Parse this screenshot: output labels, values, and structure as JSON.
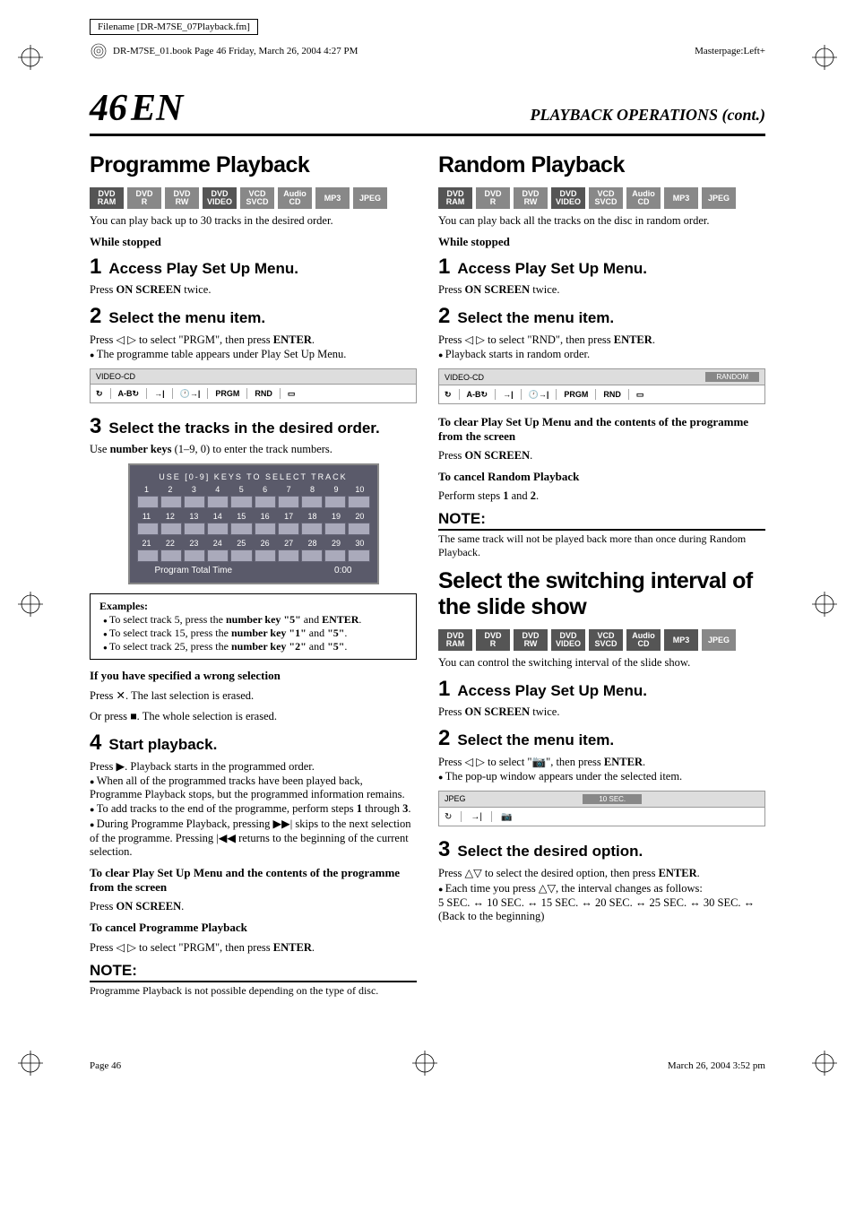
{
  "meta": {
    "filename": "Filename [DR-M7SE_07Playback.fm]",
    "book_info": "DR-M7SE_01.book  Page 46  Friday, March 26, 2004  4:27 PM",
    "masterpage": "Masterpage:Left+"
  },
  "header": {
    "page_number": "46",
    "lang": "EN",
    "cont_title": "PLAYBACK OPERATIONS (cont.)"
  },
  "formats": [
    "DVD RAM",
    "DVD R",
    "DVD RW",
    "DVD VIDEO",
    "VCD SVCD",
    "Audio CD",
    "MP3",
    "JPEG"
  ],
  "format_colors": {
    "badge_bg": "#888888",
    "badge_dark_bg": "#555555",
    "badge_text": "#ffffff"
  },
  "left": {
    "h1": "Programme Playback",
    "desc": "You can play back up to 30 tracks in the desired order.",
    "while_stopped": "While stopped",
    "step1": {
      "num": "1",
      "title": "Access Play Set Up Menu.",
      "body": "Press ON SCREEN twice."
    },
    "step2": {
      "num": "2",
      "title": "Select the menu item.",
      "body": "Press ◁ ▷ to select \"PRGM\", then press ENTER.",
      "bullet": "The programme table appears under Play Set Up Menu."
    },
    "osd_label": "VIDEO-CD",
    "osd_items": [
      "A-B",
      "PRGM",
      "RND"
    ],
    "step3": {
      "num": "3",
      "title": "Select the tracks in the desired order.",
      "body": "Use number keys (1–9, 0) to enter the track numbers."
    },
    "track_panel": {
      "title": "USE [0-9] KEYS TO SELECT TRACK",
      "rows": [
        [
          "1",
          "2",
          "3",
          "4",
          "5",
          "6",
          "7",
          "8",
          "9",
          "10"
        ],
        [
          "11",
          "12",
          "13",
          "14",
          "15",
          "16",
          "17",
          "18",
          "19",
          "20"
        ],
        [
          "21",
          "22",
          "23",
          "24",
          "25",
          "26",
          "27",
          "28",
          "29",
          "30"
        ]
      ],
      "footer_left": "Program Total Time",
      "footer_right": "0:00",
      "bg": "#5a5a6a",
      "slot_bg": "#aab",
      "slot_border": "#667"
    },
    "examples": {
      "title": "Examples:",
      "items": [
        "To select track 5, press the number key \"5\" and ENTER.",
        "To select track 15, press the number key \"1\" and \"5\".",
        "To select track 25, press the number key \"2\" and \"5\"."
      ]
    },
    "wrong_sel": {
      "title": "If you have specified a wrong selection",
      "l1": "Press ✕. The last selection is erased.",
      "l2": "Or press ■. The whole selection is erased."
    },
    "step4": {
      "num": "4",
      "title": "Start playback.",
      "body": "Press ▶. Playback starts in the programmed order.",
      "bullets": [
        "When all of the programmed tracks have been played back, Programme Playback stops, but the programmed information remains.",
        "To add tracks to the end of the programme, perform steps 1 through 3.",
        "During Programme Playback, pressing ▶▶| skips to the next selection of the programme. Pressing |◀◀ returns to the beginning of the current selection."
      ]
    },
    "clear": {
      "title": "To clear Play Set Up Menu and the contents of the programme from the screen",
      "body": "Press ON SCREEN."
    },
    "cancel": {
      "title": "To cancel Programme Playback",
      "body": "Press ◁ ▷ to select \"PRGM\", then press ENTER."
    },
    "note": {
      "head": "NOTE:",
      "body": "Programme Playback is not possible depending on the type of disc."
    }
  },
  "right": {
    "h1": "Random Playback",
    "desc": "You can play back all the tracks on the disc in random order.",
    "while_stopped": "While stopped",
    "step1": {
      "num": "1",
      "title": "Access Play Set Up Menu.",
      "body": "Press ON SCREEN twice."
    },
    "step2": {
      "num": "2",
      "title": "Select the menu item.",
      "body": "Press ◁ ▷ to select \"RND\", then press ENTER.",
      "bullet": "Playback starts in random order."
    },
    "osd_label": "VIDEO-CD",
    "osd_random": "RANDOM",
    "osd_items": [
      "A-B",
      "PRGM",
      "RND"
    ],
    "clear": {
      "title": "To clear Play Set Up Menu and the contents of the programme from the screen",
      "body": "Press ON SCREEN."
    },
    "cancel": {
      "title": "To cancel Random Playback",
      "body": "Perform steps 1 and 2."
    },
    "note": {
      "head": "NOTE:",
      "body": "The same track will not be played back more than once during Random Playback."
    },
    "h1b": "Select the switching interval of the slide show",
    "descb": "You can control the switching interval of the slide show.",
    "step1b": {
      "num": "1",
      "title": "Access Play Set Up Menu.",
      "body": "Press ON SCREEN twice."
    },
    "step2b": {
      "num": "2",
      "title": "Select the menu item.",
      "body": "Press ◁ ▷ to select \"📷\", then press ENTER.",
      "bullet": "The pop-up window appears under the selected item."
    },
    "osd2_label": "JPEG",
    "osd2_tag": "10 SEC.",
    "step3b": {
      "num": "3",
      "title": "Select the desired option.",
      "body": "Press △▽ to select the desired option, then press ENTER.",
      "bullet": "Each time you press △▽, the interval changes as follows:",
      "seq": "5 SEC. ↔ 10 SEC. ↔ 15 SEC. ↔ 20 SEC. ↔ 25 SEC. ↔ 30 SEC. ↔ (Back to the beginning)"
    }
  },
  "footer": {
    "left": "Page 46",
    "right": "March 26, 2004  3:52 pm"
  },
  "colors": {
    "text": "#000000",
    "bg": "#ffffff",
    "osd_header_bg": "#dddddd",
    "osd_border": "#999999",
    "osd_tag_bg": "#888888",
    "rule": "#000000"
  }
}
